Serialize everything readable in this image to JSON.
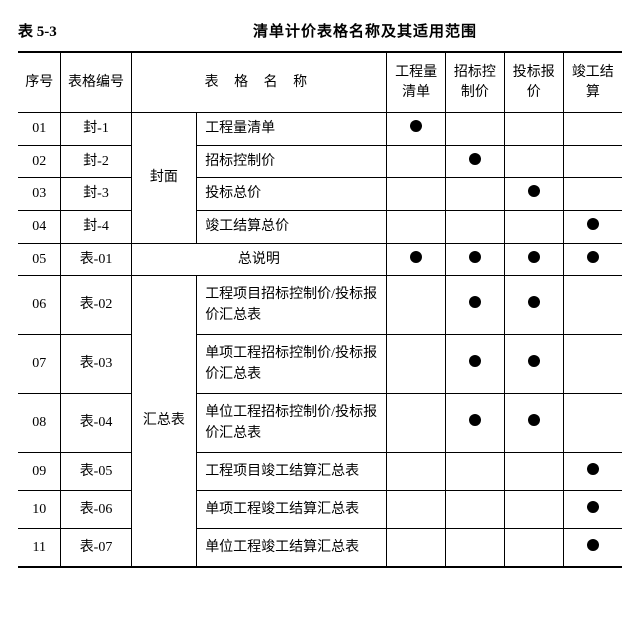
{
  "table_label": "表 5-3",
  "title": "清单计价表格名称及其适用范围",
  "headers": {
    "seq": "序号",
    "code": "表格编号",
    "name": "表  格  名  称",
    "c1": "工程量清单",
    "c2": "招标控制价",
    "c3": "投标报价",
    "c4": "竣工结算"
  },
  "groups": [
    {
      "label": "封面",
      "start": 0,
      "end": 3
    },
    {
      "label": "汇总表",
      "start": 5,
      "end": 10
    }
  ],
  "rows": [
    {
      "seq": "01",
      "code": "封-1",
      "name": "工程量清单",
      "dots": [
        true,
        false,
        false,
        false
      ],
      "multi": false
    },
    {
      "seq": "02",
      "code": "封-2",
      "name": "招标控制价",
      "dots": [
        false,
        true,
        false,
        false
      ],
      "multi": false
    },
    {
      "seq": "03",
      "code": "封-3",
      "name": "投标总价",
      "dots": [
        false,
        false,
        true,
        false
      ],
      "multi": false
    },
    {
      "seq": "04",
      "code": "封-4",
      "name": "竣工结算总价",
      "dots": [
        false,
        false,
        false,
        true
      ],
      "multi": false
    },
    {
      "seq": "05",
      "code": "表-01",
      "name": "总说明",
      "dots": [
        true,
        true,
        true,
        true
      ],
      "multi": false,
      "full_span": true
    },
    {
      "seq": "06",
      "code": "表-02",
      "name": "工程项目招标控制价/投标报价汇总表",
      "dots": [
        false,
        true,
        true,
        false
      ],
      "multi": true
    },
    {
      "seq": "07",
      "code": "表-03",
      "name": "单项工程招标控制价/投标报价汇总表",
      "dots": [
        false,
        true,
        true,
        false
      ],
      "multi": true
    },
    {
      "seq": "08",
      "code": "表-04",
      "name": "单位工程招标控制价/投标报价汇总表",
      "dots": [
        false,
        true,
        true,
        false
      ],
      "multi": true
    },
    {
      "seq": "09",
      "code": "表-05",
      "name": "工程项目竣工结算汇总表",
      "dots": [
        false,
        false,
        false,
        true
      ],
      "multi": true
    },
    {
      "seq": "10",
      "code": "表-06",
      "name": "单项工程竣工结算汇总表",
      "dots": [
        false,
        false,
        false,
        true
      ],
      "multi": true
    },
    {
      "seq": "11",
      "code": "表-07",
      "name": "单位工程竣工结算汇总表",
      "dots": [
        false,
        false,
        false,
        true
      ],
      "multi": true
    }
  ],
  "colors": {
    "border": "#000000",
    "dot": "#000000",
    "bg": "#ffffff"
  }
}
